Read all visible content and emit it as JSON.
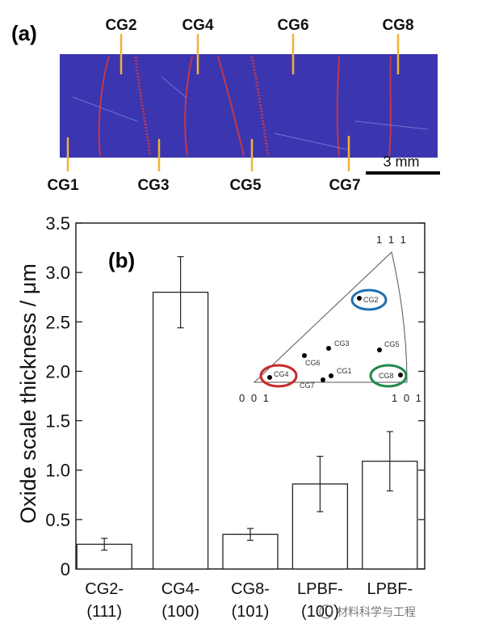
{
  "panel_a": {
    "label": "(a)",
    "top_labels": [
      "CG2",
      "CG4",
      "CG6",
      "CG8"
    ],
    "bottom_labels": [
      "CG1",
      "CG3",
      "CG5",
      "CG7"
    ],
    "scale_bar": "3 mm",
    "colors": {
      "sample": "#3c35b0",
      "grain_boundary": "#c0394d",
      "label_line": "#f2b233"
    }
  },
  "panel_b": {
    "label": "(b)",
    "inset": {
      "poles": {
        "p111": "1 1 1",
        "p001": "0 0 1",
        "p101": "1 0 1"
      },
      "points": [
        {
          "label": "CG2",
          "circled": true,
          "ring_color": "#1f6fae"
        },
        {
          "label": "CG4",
          "circled": true,
          "ring_color": "#c62b2b"
        },
        {
          "label": "CG8",
          "circled": true,
          "ring_color": "#1f8a4c"
        },
        {
          "label": "CG3",
          "circled": false
        },
        {
          "label": "CG5",
          "circled": false
        },
        {
          "label": "CG6",
          "circled": false
        },
        {
          "label": "CG1",
          "circled": false
        },
        {
          "label": "CG7",
          "circled": false
        }
      ]
    },
    "watermark": "材料科学与工程"
  },
  "chart_data": {
    "type": "bar",
    "ylabel": "Oxide scale thickness / μm",
    "ylim": [
      0,
      3.5
    ],
    "yticks": [
      "0",
      "0.5",
      "1.0",
      "1.5",
      "2.0",
      "2.5",
      "3.0",
      "3.5"
    ],
    "categories": [
      {
        "line1": "CG2-",
        "line2": "(111)"
      },
      {
        "line1": "CG4-",
        "line2": "(100)"
      },
      {
        "line1": "CG8-",
        "line2": "(101)"
      },
      {
        "line1": "LPBF-",
        "line2": "(100)"
      },
      {
        "line1": "LPBF-",
        "line2": ""
      }
    ],
    "values": [
      0.25,
      2.8,
      0.35,
      0.86,
      1.09
    ],
    "errors": [
      0.06,
      0.36,
      0.06,
      0.28,
      0.3
    ],
    "grid": false,
    "colors": {
      "bar_fill": "#ffffff",
      "bar_stroke": "#222222"
    }
  }
}
